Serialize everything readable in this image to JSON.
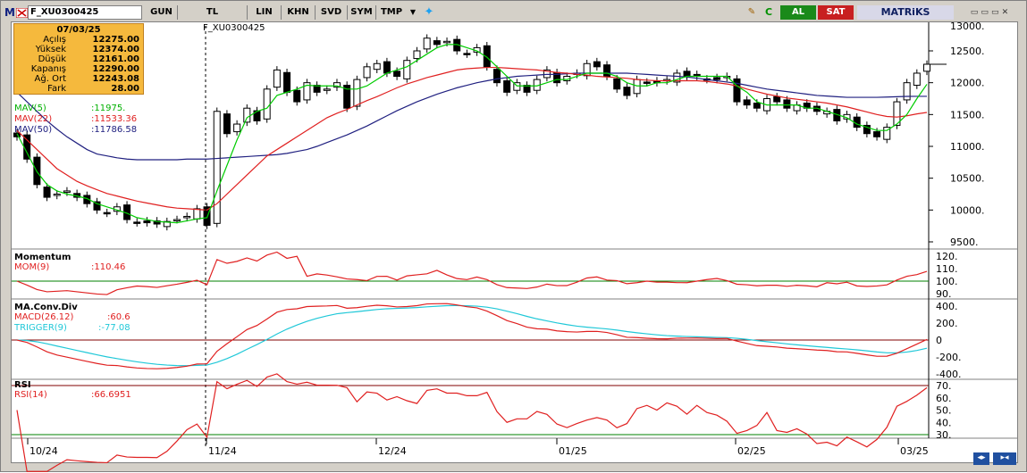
{
  "toolbar": {
    "logo": "M",
    "symbol": "F_XU0300425",
    "buttons": [
      "GUN",
      "TL",
      "LIN",
      "KHN",
      "SVD",
      "SYM",
      "TMP"
    ],
    "al": "AL",
    "sat": "SAT",
    "brand": "MATRiKS"
  },
  "info": {
    "date": "07/03/25",
    "rows": [
      {
        "label": "Açılış",
        "value": "12275.00"
      },
      {
        "label": "Yüksek",
        "value": "12374.00"
      },
      {
        "label": "Düşük",
        "value": "12161.00"
      },
      {
        "label": "Kapanış",
        "value": "12290.00"
      },
      {
        "label": "Ağ. Ort",
        "value": "12243.08"
      },
      {
        "label": "Fark",
        "value": "28.00"
      }
    ]
  },
  "price_panel": {
    "cursor_label": "F_XU0300425",
    "mav": [
      {
        "name": "MAV(5)",
        "value": ":11975.",
        "color": "#00cc00"
      },
      {
        "name": "MAV(22)",
        "value": ":11533.36",
        "color": "#e02020"
      },
      {
        "name": "MAV(50)",
        "value": ":11786.58",
        "color": "#202080"
      }
    ],
    "yticks": [
      "12500.",
      "12000.",
      "11500.",
      "11000.",
      "10500.",
      "10000.",
      "9500."
    ]
  },
  "momentum_panel": {
    "title": "Momentum",
    "series": "MOM(9)",
    "value": ":110.46",
    "yticks": [
      "120.",
      "110.",
      "100.",
      "90."
    ]
  },
  "macd_panel": {
    "title": "MA.Conv.Div",
    "macd": "MACD(26.12)",
    "macd_value": ":60.6",
    "trigger": "TRIGGER(9)",
    "trigger_value": ":-77.08",
    "yticks": [
      "400.",
      "200.",
      "0",
      "-200.",
      "-400."
    ]
  },
  "rsi_panel": {
    "title": "RSI",
    "series": "RSI(14)",
    "value": ":66.6951",
    "yticks": [
      "70.",
      "60.",
      "50.",
      "40.",
      "30."
    ]
  },
  "xaxis": [
    "10/24",
    "11/24",
    "12/24",
    "01/25",
    "02/25",
    "03/25"
  ],
  "chart_data": {
    "type": "line",
    "title": "F_XU0300425",
    "closes": [
      11150,
      10800,
      10400,
      10200,
      10250,
      10300,
      10200,
      10100,
      10000,
      9950,
      10050,
      9850,
      9800,
      9800,
      9780,
      9820,
      9850,
      9900,
      10020,
      9760,
      11550,
      11200,
      11350,
      11600,
      11400,
      11900,
      12200,
      11850,
      11700,
      12000,
      11850,
      11900,
      12000,
      11600,
      12050,
      12250,
      12300,
      12150,
      12100,
      12350,
      12500,
      12700,
      12600,
      12650,
      12500,
      12450,
      12550,
      12250,
      12000,
      11850,
      12000,
      11850,
      12050,
      12200,
      12000,
      12100,
      12150,
      12300,
      12250,
      12100,
      11900,
      11800,
      12050,
      12000,
      12000,
      12050,
      12150,
      12100,
      12100,
      12050,
      12050,
      12100,
      11700,
      11650,
      11600,
      11750,
      11700,
      11600,
      11650,
      11600,
      11550,
      11550,
      11400,
      11500,
      11300,
      11200,
      11150,
      11300,
      11700,
      12000,
      12150,
      12290
    ],
    "mav5": [
      11200,
      10900,
      10600,
      10400,
      10300,
      10250,
      10220,
      10180,
      10100,
      10050,
      10000,
      9950,
      9880,
      9850,
      9820,
      9810,
      9800,
      9830,
      9860,
      9880,
      10300,
      10700,
      11100,
      11450,
      11550,
      11600,
      11800,
      11850,
      11900,
      11960,
      11950,
      11950,
      11950,
      11900,
      11900,
      11950,
      12050,
      12150,
      12200,
      12250,
      12350,
      12450,
      12550,
      12600,
      12600,
      12550,
      12500,
      12400,
      12250,
      12100,
      11950,
      11950,
      11950,
      12000,
      12050,
      12050,
      12100,
      12150,
      12150,
      12150,
      12100,
      12000,
      11950,
      11950,
      12000,
      12000,
      12050,
      12100,
      12100,
      12100,
      12100,
      12100,
      11950,
      11850,
      11700,
      11650,
      11650,
      11650,
      11650,
      11600,
      11600,
      11550,
      11500,
      11450,
      11350,
      11300,
      11250,
      11250,
      11350,
      11500,
      11750,
      11975
    ],
    "mav22": [
      11250,
      11100,
      10950,
      10800,
      10650,
      10550,
      10450,
      10380,
      10320,
      10260,
      10220,
      10180,
      10140,
      10110,
      10080,
      10050,
      10030,
      10020,
      10010,
      10000,
      10100,
      10250,
      10400,
      10550,
      10700,
      10850,
      10950,
      11050,
      11150,
      11250,
      11350,
      11450,
      11520,
      11580,
      11650,
      11720,
      11780,
      11850,
      11920,
      11980,
      12030,
      12080,
      12120,
      12160,
      12200,
      12220,
      12230,
      12240,
      12240,
      12230,
      12220,
      12210,
      12200,
      12180,
      12160,
      12150,
      12130,
      12120,
      12100,
      12090,
      12080,
      12070,
      12050,
      12040,
      12030,
      12030,
      12030,
      12030,
      12030,
      12020,
      12000,
      11980,
      11950,
      11900,
      11860,
      11820,
      11790,
      11760,
      11740,
      11720,
      11700,
      11680,
      11650,
      11620,
      11580,
      11540,
      11500,
      11470,
      11460,
      11480,
      11510,
      11533
    ],
    "mav50": [
      11850,
      11700,
      11550,
      11400,
      11270,
      11150,
      11050,
      10950,
      10880,
      10850,
      10820,
      10800,
      10790,
      10790,
      10790,
      10790,
      10790,
      10800,
      10800,
      10800,
      10810,
      10820,
      10830,
      10840,
      10850,
      10860,
      10870,
      10890,
      10920,
      10950,
      11000,
      11060,
      11120,
      11180,
      11250,
      11320,
      11400,
      11480,
      11560,
      11630,
      11700,
      11760,
      11820,
      11870,
      11920,
      11960,
      12000,
      12030,
      12060,
      12080,
      12100,
      12110,
      12120,
      12130,
      12130,
      12140,
      12150,
      12150,
      12150,
      12150,
      12150,
      12150,
      12140,
      12130,
      12120,
      12110,
      12100,
      12090,
      12070,
      12050,
      12030,
      12010,
      11990,
      11960,
      11930,
      11900,
      11880,
      11860,
      11840,
      11820,
      11800,
      11790,
      11780,
      11770,
      11770,
      11770,
      11770,
      11775,
      11780,
      11785,
      11786,
      11786
    ]
  }
}
